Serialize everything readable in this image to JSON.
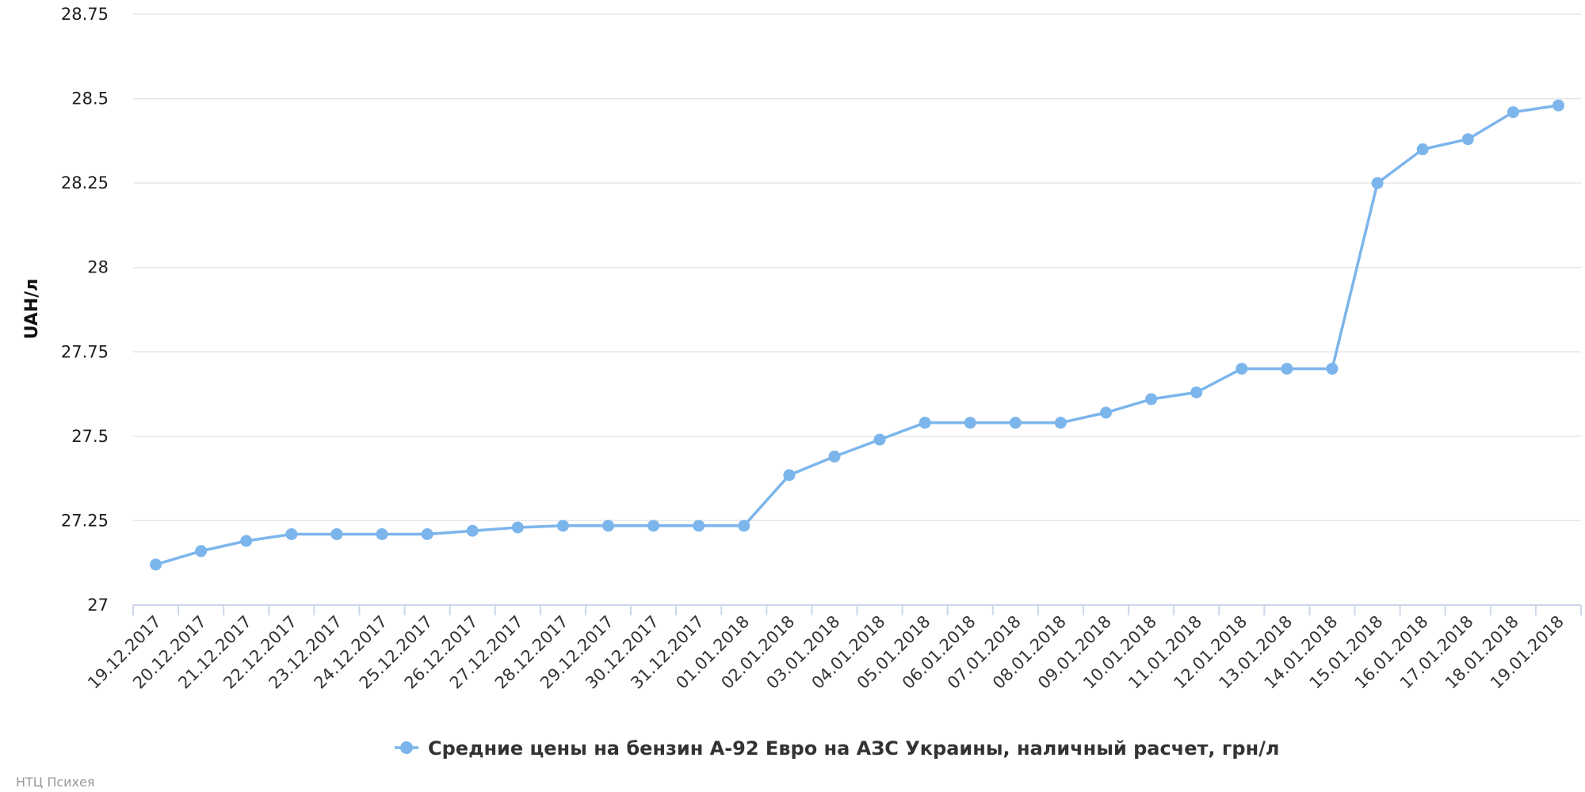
{
  "chart_data": {
    "type": "line",
    "ylabel": "UAH/л",
    "ylim": [
      27,
      28.75
    ],
    "yticks": [
      "27",
      "27.25",
      "27.5",
      "27.75",
      "28",
      "28.25",
      "28.5",
      "28.75"
    ],
    "grid": true,
    "legend_position": "bottom-center",
    "x": [
      "19.12.2017",
      "20.12.2017",
      "21.12.2017",
      "22.12.2017",
      "23.12.2017",
      "24.12.2017",
      "25.12.2017",
      "26.12.2017",
      "27.12.2017",
      "28.12.2017",
      "29.12.2017",
      "30.12.2017",
      "31.12.2017",
      "01.01.2018",
      "02.01.2018",
      "03.01.2018",
      "04.01.2018",
      "05.01.2018",
      "06.01.2018",
      "07.01.2018",
      "08.01.2018",
      "09.01.2018",
      "10.01.2018",
      "11.01.2018",
      "12.01.2018",
      "13.01.2018",
      "14.01.2018",
      "15.01.2018",
      "16.01.2018",
      "17.01.2018",
      "18.01.2018",
      "19.01.2018"
    ],
    "series": [
      {
        "name": "Средние цены на бензин А-92 Евро на АЗС Украины, наличный расчет, грн/л",
        "color": "#7cb5ec",
        "values": [
          27.12,
          27.16,
          27.19,
          27.21,
          27.21,
          27.21,
          27.21,
          27.22,
          27.23,
          27.235,
          27.235,
          27.235,
          27.235,
          27.235,
          27.385,
          27.44,
          27.49,
          27.54,
          27.54,
          27.54,
          27.54,
          27.57,
          27.61,
          27.63,
          27.7,
          27.7,
          27.7,
          28.25,
          28.35,
          28.38,
          28.46,
          28.48
        ]
      }
    ]
  },
  "credits": "НТЦ Психея"
}
